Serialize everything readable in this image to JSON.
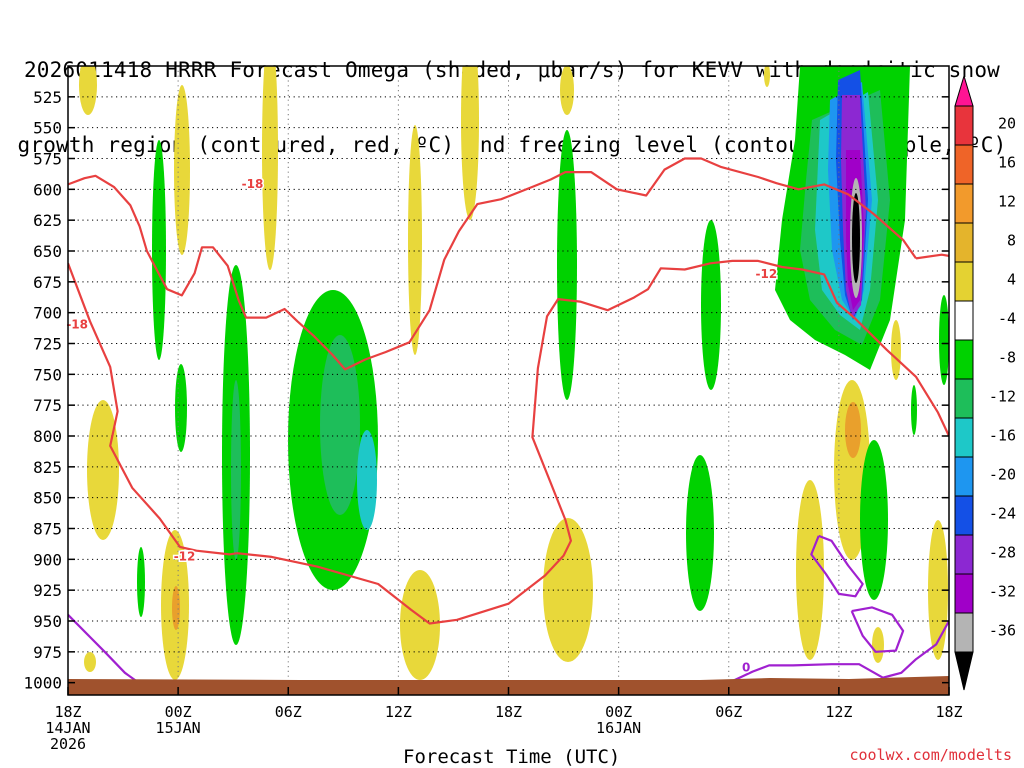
{
  "title": {
    "line1": "2026011418 HRRR Forecast Omega (shaded, μbar/s) for KEVV with dendritic snow",
    "line2": "growth region (contoured, red, ºC) and freezing level (contoured, purple, ºC)"
  },
  "xlabel": "Forecast Time (UTC)",
  "credit": "coolwx.com/modelts",
  "chart_data": {
    "type": "time-height cross section",
    "station": "KEVV",
    "model": "HRRR",
    "init": "2026011418",
    "ylabel_levels_mb": [
      525,
      550,
      575,
      600,
      625,
      650,
      675,
      700,
      725,
      750,
      775,
      800,
      825,
      850,
      875,
      900,
      925,
      950,
      975,
      1000
    ],
    "ylim_mb": [
      500,
      1010
    ],
    "xlim_hours": [
      0,
      48
    ],
    "x_ticks": [
      {
        "h": 0,
        "label": "18Z",
        "sub1": "14JAN",
        "sub2": "2026"
      },
      {
        "h": 6,
        "label": "00Z",
        "sub1": "15JAN",
        "sub2": ""
      },
      {
        "h": 12,
        "label": "06Z",
        "sub1": "",
        "sub2": ""
      },
      {
        "h": 18,
        "label": "12Z",
        "sub1": "",
        "sub2": ""
      },
      {
        "h": 24,
        "label": "18Z",
        "sub1": "",
        "sub2": ""
      },
      {
        "h": 30,
        "label": "00Z",
        "sub1": "16JAN",
        "sub2": ""
      },
      {
        "h": 36,
        "label": "06Z",
        "sub1": "",
        "sub2": ""
      },
      {
        "h": 42,
        "label": "12Z",
        "sub1": "",
        "sub2": ""
      },
      {
        "h": 48,
        "label": "18Z",
        "sub1": "",
        "sub2": ""
      }
    ],
    "colorbar": {
      "labels": [
        "20",
        "16",
        "12",
        "8",
        "4",
        "-4",
        "-8",
        "-12",
        "-16",
        "-20",
        "-24",
        "-28",
        "-32",
        "-36"
      ],
      "colors": [
        "#ff1493",
        "#e8343c",
        "#ef6428",
        "#f29a2c",
        "#e4b42c",
        "#e4d232",
        "#ffffff",
        "#00d200",
        "#1ebe5a",
        "#1ec8c8",
        "#1e96f0",
        "#1450e6",
        "#8c28d2",
        "#a000c8",
        "#b4b4b4",
        "#000000"
      ]
    },
    "contour_labels": [
      {
        "text": "-18",
        "h": 10.05,
        "p": 595.5,
        "color": "#e84040"
      },
      {
        "text": "-18",
        "h": 0.5,
        "p": 709.5,
        "color": "#e84040"
      },
      {
        "text": "-12",
        "h": 6.35,
        "p": 897.5,
        "color": "#e84040"
      },
      {
        "text": "-12",
        "h": 38.05,
        "p": 668.5,
        "color": "#e84040"
      },
      {
        "text": "0",
        "h": 36.95,
        "p": 987.5,
        "color": "#a020d0"
      }
    ],
    "series": [
      {
        "name": "-18C isotherm (upper)",
        "color": "#e84040",
        "points": [
          [
            0,
            596
          ],
          [
            0.9,
            591
          ],
          [
            1.5,
            589
          ],
          [
            2.5,
            598
          ],
          [
            3.4,
            613
          ],
          [
            3.9,
            630
          ],
          [
            4.3,
            650
          ],
          [
            4.9,
            667
          ],
          [
            5.4,
            681
          ],
          [
            6.2,
            686
          ],
          [
            6.9,
            668
          ],
          [
            7.3,
            647
          ],
          [
            7.9,
            647
          ],
          [
            8.7,
            662
          ],
          [
            9.3,
            690
          ],
          [
            9.7,
            704
          ],
          [
            10.8,
            704
          ],
          [
            11.8,
            697
          ],
          [
            12.5,
            707
          ],
          [
            13.4,
            719
          ],
          [
            14.4,
            734
          ],
          [
            15.1,
            746
          ],
          [
            16.2,
            738
          ],
          [
            17.3,
            732
          ],
          [
            18.6,
            724
          ],
          [
            19.7,
            698
          ],
          [
            20.5,
            657
          ],
          [
            21.3,
            634
          ],
          [
            22.3,
            612
          ],
          [
            23.6,
            608
          ],
          [
            25.3,
            598
          ],
          [
            26.3,
            592
          ],
          [
            27.1,
            586
          ],
          [
            28.5,
            586
          ],
          [
            29.9,
            600
          ],
          [
            31.5,
            605
          ],
          [
            32.5,
            584
          ],
          [
            33.6,
            575
          ],
          [
            34.5,
            575
          ],
          [
            35.6,
            582
          ],
          [
            37.6,
            590
          ],
          [
            38.6,
            595
          ],
          [
            39.8,
            600
          ],
          [
            41.2,
            596
          ],
          [
            42.5,
            604
          ],
          [
            43.9,
            620
          ],
          [
            45.5,
            641
          ],
          [
            46.2,
            656
          ]
        ]
      },
      {
        "name": "-12C isotherm (left branch)",
        "color": "#e84040",
        "points": [
          [
            0,
            660
          ],
          [
            1.2,
            707
          ],
          [
            2.3,
            744
          ],
          [
            2.7,
            780
          ],
          [
            2.3,
            808
          ],
          [
            3.5,
            842
          ],
          [
            5.0,
            867
          ],
          [
            6.1,
            890
          ],
          [
            7.0,
            893
          ],
          [
            8.8,
            896
          ],
          [
            9.2,
            895
          ]
        ]
      },
      {
        "name": "-12C isotherm (main)",
        "color": "#e84040",
        "points": [
          [
            9.2,
            895
          ],
          [
            11.1,
            898
          ],
          [
            13.6,
            906
          ],
          [
            16.9,
            920
          ],
          [
            18.7,
            941
          ],
          [
            19.7,
            952
          ],
          [
            21.2,
            949
          ],
          [
            24.0,
            936
          ],
          [
            26.0,
            913
          ],
          [
            27.0,
            897
          ],
          [
            27.4,
            885
          ],
          [
            27.1,
            868
          ],
          [
            26.3,
            838
          ],
          [
            25.3,
            801
          ],
          [
            25.6,
            745
          ],
          [
            26.1,
            703
          ],
          [
            26.7,
            689
          ],
          [
            27.9,
            691
          ],
          [
            29.4,
            698
          ],
          [
            30.8,
            688
          ],
          [
            31.6,
            681
          ],
          [
            32.3,
            664
          ],
          [
            33.6,
            665
          ],
          [
            35.0,
            660
          ],
          [
            36.2,
            658
          ],
          [
            37.6,
            658
          ],
          [
            38.9,
            663
          ],
          [
            40.0,
            665
          ],
          [
            41.2,
            669
          ],
          [
            41.9,
            692
          ],
          [
            42.9,
            705
          ],
          [
            44.6,
            730
          ],
          [
            46.2,
            752
          ],
          [
            47.4,
            781
          ],
          [
            48,
            800
          ]
        ]
      },
      {
        "name": "-12C isotherm (right edge)",
        "color": "#e84040",
        "points": [
          [
            46.2,
            656
          ],
          [
            47.6,
            653
          ],
          [
            48,
            654
          ]
        ]
      },
      {
        "name": "0C freezing level (left)",
        "color": "#a020d0",
        "points": [
          [
            0,
            945
          ],
          [
            1.2,
            963
          ],
          [
            2.0,
            975
          ],
          [
            3.1,
            992
          ],
          [
            4.5,
            1007
          ]
        ]
      },
      {
        "name": "0C freezing level (right)",
        "color": "#a020d0",
        "points": [
          [
            36.0,
            1000
          ],
          [
            37.3,
            991
          ],
          [
            38.2,
            986
          ],
          [
            39.5,
            986
          ],
          [
            41.6,
            985
          ],
          [
            43.1,
            985
          ],
          [
            44.4,
            996
          ],
          [
            45.4,
            992
          ],
          [
            46.2,
            981
          ],
          [
            47.3,
            969
          ],
          [
            48,
            950
          ]
        ]
      },
      {
        "name": "0C closed loop A",
        "color": "#a020d0",
        "points": [
          [
            40.9,
            881
          ],
          [
            40.5,
            896
          ],
          [
            41.3,
            912
          ],
          [
            42.0,
            928
          ],
          [
            42.9,
            930
          ],
          [
            43.3,
            920
          ],
          [
            42.5,
            905
          ],
          [
            41.6,
            885
          ],
          [
            40.9,
            881
          ]
        ]
      },
      {
        "name": "0C closed loop B",
        "color": "#a020d0",
        "points": [
          [
            42.7,
            942
          ],
          [
            43.3,
            962
          ],
          [
            44.0,
            975
          ],
          [
            45.1,
            974
          ],
          [
            45.5,
            958
          ],
          [
            44.9,
            945
          ],
          [
            43.8,
            939
          ],
          [
            42.7,
            942
          ]
        ]
      }
    ]
  }
}
